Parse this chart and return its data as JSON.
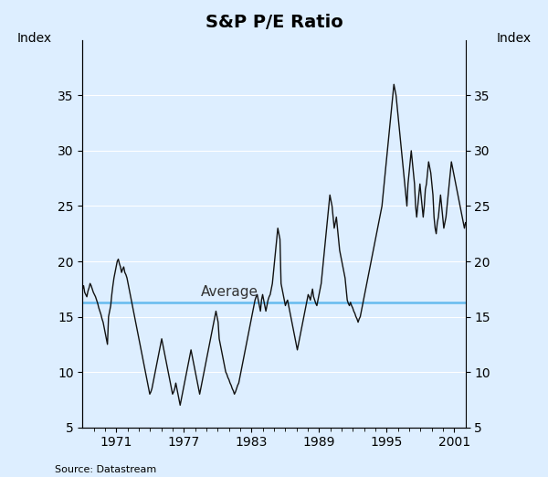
{
  "title": "S&P P/E Ratio",
  "ylabel_left": "Index",
  "ylabel_right": "Index",
  "source": "Source: Datastream",
  "background_color": "#ddeeff",
  "line_color": "#111111",
  "average_color": "#66bbee",
  "average_value": 16.3,
  "average_label": "Average",
  "ylim": [
    5,
    40
  ],
  "yticks": [
    5,
    10,
    15,
    20,
    25,
    30,
    35
  ],
  "start_year": 1968.0,
  "end_year": 2002.0,
  "xtick_years": [
    1971,
    1977,
    1983,
    1989,
    1995,
    2001
  ],
  "title_fontsize": 14,
  "label_fontsize": 10,
  "tick_fontsize": 10,
  "pe_data": [
    17.5,
    17.8,
    17.2,
    17.0,
    16.8,
    17.3,
    17.6,
    18.0,
    17.8,
    17.5,
    17.2,
    17.0,
    16.8,
    16.5,
    16.2,
    15.8,
    15.5,
    15.2,
    14.8,
    14.5,
    14.0,
    13.5,
    13.0,
    12.5,
    15.0,
    15.5,
    16.0,
    17.0,
    17.8,
    18.5,
    19.0,
    19.5,
    20.0,
    20.2,
    19.8,
    19.5,
    19.0,
    19.3,
    19.5,
    19.0,
    18.8,
    18.5,
    18.0,
    17.5,
    17.0,
    16.5,
    16.0,
    15.5,
    15.0,
    14.5,
    14.0,
    13.5,
    13.0,
    12.5,
    12.0,
    11.5,
    11.0,
    10.5,
    10.0,
    9.5,
    9.0,
    8.5,
    8.0,
    8.2,
    8.5,
    9.0,
    9.5,
    10.0,
    10.5,
    11.0,
    11.5,
    12.0,
    12.5,
    13.0,
    12.5,
    12.0,
    11.5,
    11.0,
    10.5,
    10.0,
    9.5,
    9.0,
    8.5,
    8.0,
    8.2,
    8.5,
    9.0,
    8.5,
    8.0,
    7.5,
    7.0,
    7.5,
    8.0,
    8.5,
    9.0,
    9.5,
    10.0,
    10.5,
    11.0,
    11.5,
    12.0,
    11.5,
    11.0,
    10.5,
    10.0,
    9.5,
    9.0,
    8.5,
    8.0,
    8.5,
    9.0,
    9.5,
    10.0,
    10.5,
    11.0,
    11.5,
    12.0,
    12.5,
    13.0,
    13.5,
    14.0,
    14.5,
    15.0,
    15.5,
    15.0,
    14.5,
    13.0,
    12.5,
    12.0,
    11.5,
    11.0,
    10.5,
    10.0,
    9.8,
    9.5,
    9.3,
    9.0,
    8.8,
    8.5,
    8.3,
    8.0,
    8.2,
    8.5,
    8.8,
    9.0,
    9.5,
    10.0,
    10.5,
    11.0,
    11.5,
    12.0,
    12.5,
    13.0,
    13.5,
    14.0,
    14.5,
    15.0,
    15.5,
    16.0,
    16.5,
    16.8,
    17.0,
    16.5,
    16.0,
    15.5,
    16.5,
    17.0,
    16.5,
    16.0,
    15.5,
    16.0,
    16.5,
    16.8,
    17.0,
    17.5,
    18.0,
    19.0,
    20.0,
    21.0,
    22.0,
    23.0,
    22.5,
    22.0,
    18.0,
    17.5,
    17.0,
    16.5,
    16.0,
    16.3,
    16.5,
    16.0,
    15.5,
    15.0,
    14.5,
    14.0,
    13.5,
    13.0,
    12.5,
    12.0,
    12.5,
    13.0,
    13.5,
    14.0,
    14.5,
    15.0,
    15.5,
    16.0,
    16.5,
    17.0,
    16.8,
    16.5,
    17.0,
    17.5,
    16.8,
    16.5,
    16.2,
    16.0,
    16.5,
    17.0,
    17.5,
    18.0,
    19.0,
    20.0,
    21.0,
    22.0,
    23.0,
    24.0,
    25.0,
    26.0,
    25.5,
    25.0,
    24.0,
    23.0,
    23.5,
    24.0,
    23.0,
    22.0,
    21.0,
    20.5,
    20.0,
    19.5,
    19.0,
    18.5,
    17.5,
    16.5,
    16.2,
    16.0,
    16.3,
    16.0,
    15.8,
    15.5,
    15.3,
    15.0,
    14.8,
    14.5,
    14.8,
    15.0,
    15.5,
    16.0,
    16.5,
    17.0,
    17.5,
    18.0,
    18.5,
    19.0,
    19.5,
    20.0,
    20.5,
    21.0,
    21.5,
    22.0,
    22.5,
    23.0,
    23.5,
    24.0,
    24.5,
    25.0,
    26.0,
    27.0,
    28.0,
    29.0,
    30.0,
    31.0,
    32.0,
    33.0,
    34.0,
    35.0,
    36.0,
    35.5,
    35.0,
    34.0,
    33.0,
    32.0,
    31.0,
    30.0,
    29.0,
    28.0,
    27.0,
    26.0,
    25.0,
    27.0,
    28.0,
    29.0,
    30.0,
    29.0,
    28.0,
    27.0,
    25.0,
    24.0,
    25.0,
    26.0,
    27.0,
    26.0,
    25.0,
    24.0,
    25.0,
    26.5,
    27.0,
    28.0,
    29.0,
    28.5,
    28.0,
    27.0,
    26.0,
    24.0,
    23.0,
    22.5,
    23.5,
    24.0,
    25.0,
    26.0,
    25.0,
    24.0,
    23.0,
    23.5,
    24.0,
    25.0,
    26.0,
    27.0,
    28.0,
    29.0,
    28.5,
    28.0,
    27.5,
    27.0,
    26.5,
    26.0,
    25.5,
    25.0,
    24.5,
    24.0,
    23.5,
    23.0,
    23.5
  ]
}
